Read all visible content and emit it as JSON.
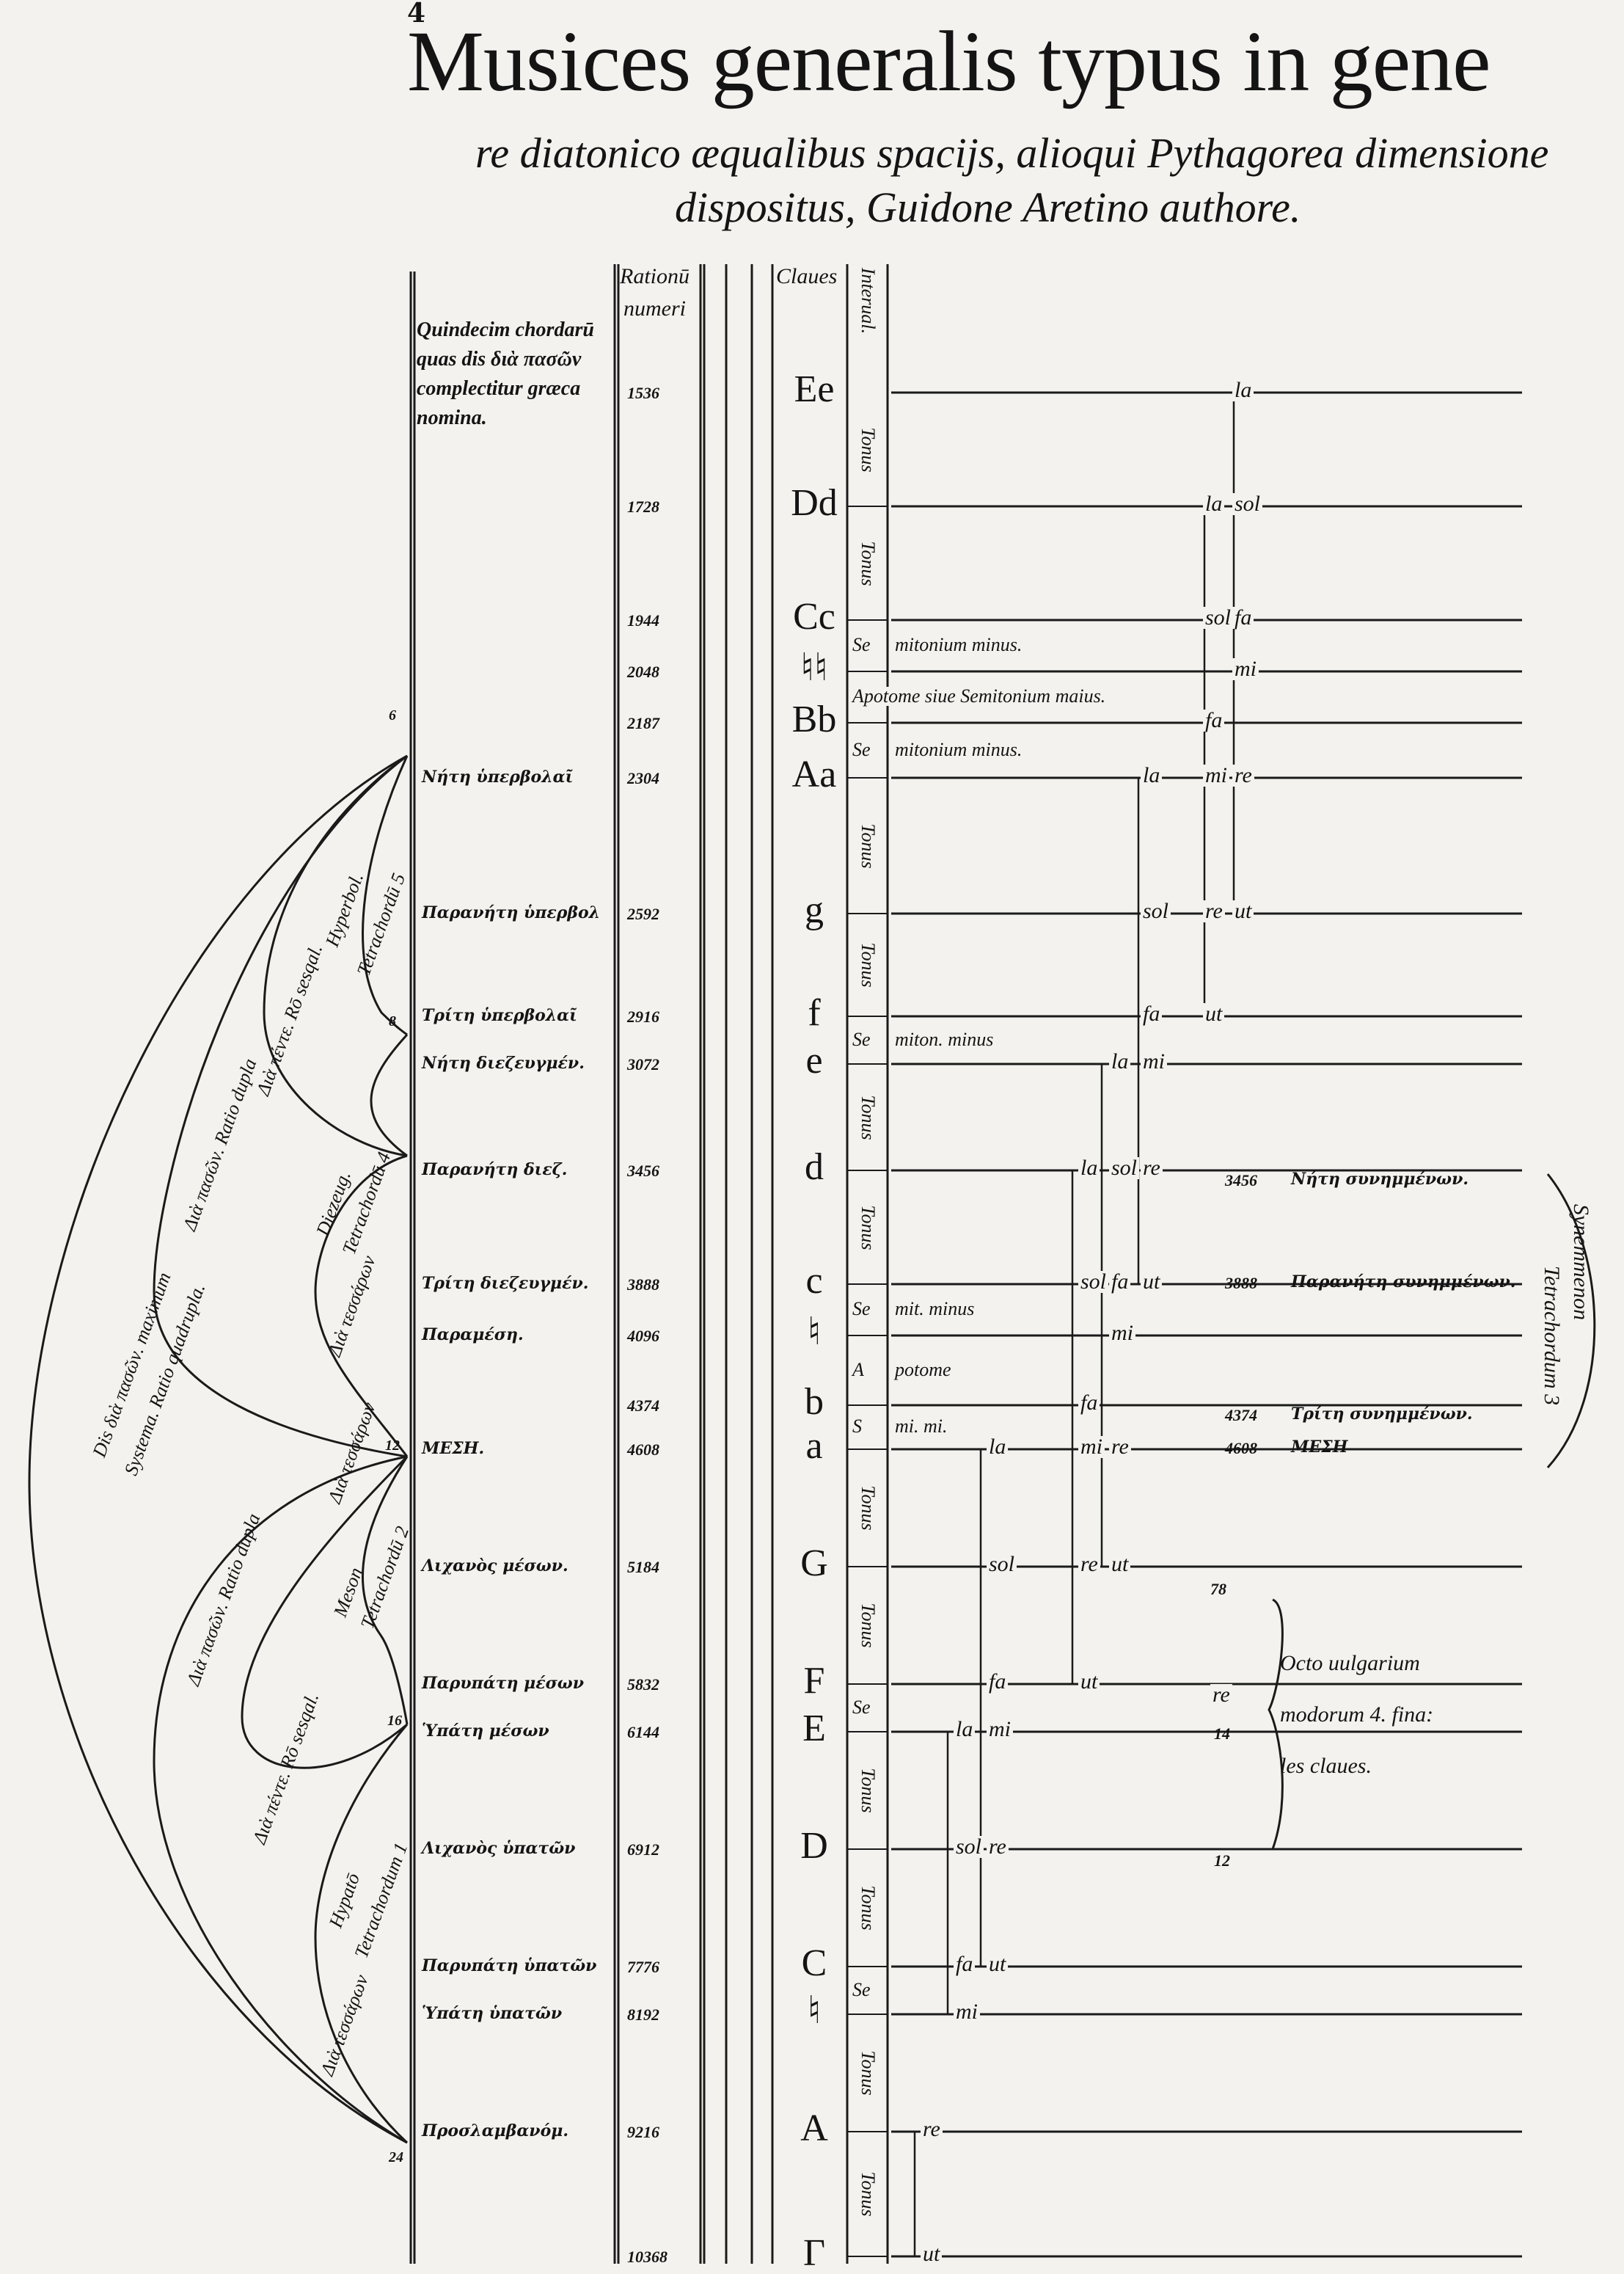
{
  "title": {
    "line1": "Musices generalis typus in gene",
    "line2": "re diatonico æqualibus spacijs, alioqui Pythagorea dimensione",
    "line3": "dispositus, Guidone Aretino authore."
  },
  "headers": {
    "greek_col": "Quindecim chordarū quas dis διὰ πασῶν complectitur græca nomina.",
    "ratio_col_1": "Rationū",
    "ratio_col_2": "numeri",
    "claues_col": "Claues",
    "interval_col": "Interual."
  },
  "rows": [
    {
      "greek": "",
      "ratio": "1536",
      "clavis": "Ee",
      "syl": [
        "la"
      ]
    },
    {
      "greek": "",
      "ratio": "1728",
      "clavis": "Dd",
      "syl": [
        "la",
        "sol"
      ]
    },
    {
      "greek": "",
      "ratio": "1944",
      "clavis": "Cc",
      "syl": [
        "sol",
        "fa"
      ]
    },
    {
      "greek": "",
      "ratio": "2048",
      "clavis": "♮♮",
      "syl": [
        "mi"
      ]
    },
    {
      "greek": "",
      "ratio": "2187",
      "clavis": "Bb",
      "syl": [
        "fa"
      ]
    },
    {
      "greek": "Νήτη ὑπερβολαῖ",
      "ratio": "2304",
      "clavis": "Aa",
      "syl": [
        "la",
        "mi",
        "re"
      ]
    },
    {
      "greek": "Παρανήτη ὑπερβολ",
      "ratio": "2592",
      "clavis": "g",
      "syl": [
        "sol",
        "re",
        "ut"
      ]
    },
    {
      "greek": "Τρίτη ὑπερβολαῖ",
      "ratio": "2916",
      "clavis": "f",
      "syl": [
        "fa",
        "ut"
      ]
    },
    {
      "greek": "Νήτη διεζευγμέν.",
      "ratio": "3072",
      "clavis": "e",
      "syl": [
        "la",
        "mi"
      ]
    },
    {
      "greek": "Παρανήτη διεζ.",
      "ratio": "3456",
      "clavis": "d",
      "syl": [
        "la",
        "sol",
        "re"
      ]
    },
    {
      "greek": "Τρίτη διεζευγμέν.",
      "ratio": "3888",
      "clavis": "c",
      "syl": [
        "sol",
        "fa",
        "ut"
      ]
    },
    {
      "greek": "Παραμέση.",
      "ratio": "4096",
      "clavis": "♮",
      "syl": [
        "mi"
      ]
    },
    {
      "greek": "",
      "ratio": "4374",
      "clavis": "b",
      "syl": [
        "fa"
      ]
    },
    {
      "greek": "ΜΕΣΗ.",
      "ratio": "4608",
      "clavis": "a",
      "syl": [
        "la",
        "mi",
        "re"
      ]
    },
    {
      "greek": "Λιχανὸς μέσων.",
      "ratio": "5184",
      "clavis": "G",
      "syl": [
        "sol",
        "re",
        "ut"
      ]
    },
    {
      "greek": "Παρυπάτη μέσων",
      "ratio": "5832",
      "clavis": "F",
      "syl": [
        "fa",
        "ut"
      ]
    },
    {
      "greek": "Ὑπάτη μέσων",
      "ratio": "6144",
      "clavis": "E",
      "syl": [
        "la",
        "mi"
      ]
    },
    {
      "greek": "Λιχανὸς ὑπατῶν",
      "ratio": "6912",
      "clavis": "D",
      "syl": [
        "sol",
        "re"
      ]
    },
    {
      "greek": "Παρυπάτη ὑπατῶν",
      "ratio": "7776",
      "clavis": "C",
      "syl": [
        "fa",
        "ut"
      ]
    },
    {
      "greek": "Ὑπάτη ὑπατῶν",
      "ratio": "8192",
      "clavis": "♮",
      "syl": [
        "mi"
      ]
    },
    {
      "greek": "Προσλαμβανόμ.",
      "ratio": "9216",
      "clavis": "A",
      "syl": [
        "re"
      ]
    },
    {
      "greek": "",
      "ratio": "10368",
      "clavis": "Γ",
      "syl": [
        "ut"
      ]
    }
  ],
  "intervals": [
    {
      "label": "Tonus"
    },
    {
      "label": "Tonus"
    },
    {
      "label": "Se",
      "text": "mitonium minus."
    },
    {
      "label": "Apotome siue Semitonium maius.",
      "text": ""
    },
    {
      "label": "Se",
      "text": "mitonium minus."
    },
    {
      "label": "Tonus"
    },
    {
      "label": "Tonus"
    },
    {
      "label": "Se",
      "text": "miton. minus"
    },
    {
      "label": "Tonus"
    },
    {
      "label": "Tonus"
    },
    {
      "label": "Se",
      "text": "mit. minus"
    },
    {
      "label": "A",
      "text": "potome"
    },
    {
      "label": "S",
      "text": "mi. mi."
    },
    {
      "label": "Tonus"
    },
    {
      "label": "Tonus"
    },
    {
      "label": "Se"
    },
    {
      "label": "Tonus"
    },
    {
      "label": "Tonus"
    },
    {
      "label": "Se"
    },
    {
      "label": "Tonus"
    },
    {
      "label": "Tonus"
    }
  ],
  "synemmenon": {
    "rows": [
      {
        "ratio": "3456",
        "greek": "Νήτη συνημμένων."
      },
      {
        "ratio": "3888",
        "greek": "Παρανήτη συνημμένων."
      },
      {
        "ratio": "4374",
        "greek": "Τρίτη συνημμένων."
      },
      {
        "ratio": "4608",
        "greek": "ΜΕΣΗ"
      }
    ],
    "label_1": "Synemmenon",
    "label_2": "Tetrachordum 3"
  },
  "finales": {
    "line1": "Octo uulgarium",
    "line2": "modorum 4. fina:",
    "line3": "les claues.",
    "n1": "78",
    "n2": "re",
    "n3": "14",
    "n4": "12"
  },
  "tetrachords": {
    "hyperbol": [
      "Hyperbol.",
      "Tetrachordū 5"
    ],
    "diezeug": [
      "Diezeug.",
      "Tetrachordū 4"
    ],
    "meson": [
      "Meson",
      "Tetrachordū 2"
    ],
    "hypaton": [
      "Hypatō",
      "Tetrachordum 1"
    ]
  },
  "arcs": {
    "big_1": "Dis διὰ πασῶν. maximum",
    "big_2": "Systema. Ratio quadrupla.",
    "upper_diapason": "Διὰ πασῶν. Ratio dupla",
    "lower_diapason": "Διὰ πασῶν. Ratio dupla",
    "upper_diapente": "Διὰ πέντε. Rō sesqal.",
    "lower_diapente": "Διὰ πέντε. Rō sesqal.",
    "diatessaron": "Διὰ τεσσάρων"
  },
  "edge_numbers": [
    "4",
    "6",
    "8",
    "12",
    "16",
    "24"
  ]
}
